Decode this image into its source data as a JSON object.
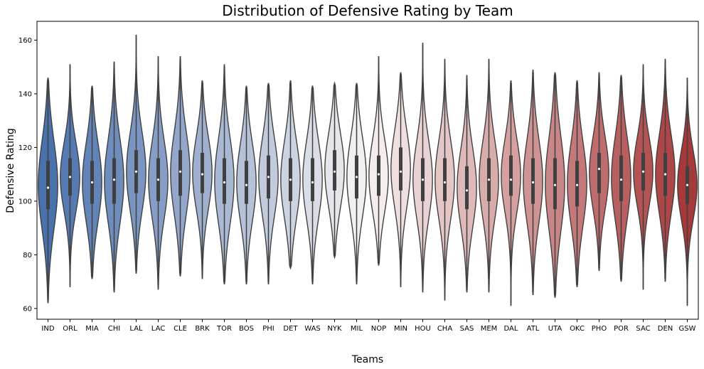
{
  "chart_data": {
    "type": "violin",
    "title": "Distribution of Defensive Rating by Team",
    "xlabel": "Teams",
    "ylabel": "Defensive Rating",
    "ylim": [
      56,
      167
    ],
    "yticks": [
      60,
      80,
      100,
      120,
      140,
      160
    ],
    "grid": false,
    "legend": "none",
    "categories": [
      "IND",
      "ORL",
      "MIA",
      "CHI",
      "LAL",
      "LAC",
      "CLE",
      "BRK",
      "TOR",
      "BOS",
      "PHI",
      "DET",
      "WAS",
      "NYK",
      "MIL",
      "NOP",
      "MIN",
      "HOU",
      "CHA",
      "SAS",
      "MEM",
      "DAL",
      "ATL",
      "UTA",
      "OKC",
      "PHO",
      "POR",
      "SAC",
      "DEN",
      "GSW"
    ],
    "series": [
      {
        "values": [
          {
            "min": 62,
            "q1": 97,
            "median": 105,
            "q3": 115,
            "max": 146
          },
          {
            "min": 68,
            "q1": 102,
            "median": 109,
            "q3": 116,
            "max": 151
          },
          {
            "min": 71,
            "q1": 99,
            "median": 107,
            "q3": 115,
            "max": 143
          },
          {
            "min": 66,
            "q1": 99,
            "median": 108,
            "q3": 116,
            "max": 152
          },
          {
            "min": 73,
            "q1": 103,
            "median": 111,
            "q3": 119,
            "max": 162
          },
          {
            "min": 67,
            "q1": 100,
            "median": 108,
            "q3": 116,
            "max": 154
          },
          {
            "min": 72,
            "q1": 102,
            "median": 111,
            "q3": 119,
            "max": 154
          },
          {
            "min": 71,
            "q1": 103,
            "median": 110,
            "q3": 118,
            "max": 145
          },
          {
            "min": 69,
            "q1": 99,
            "median": 107,
            "q3": 116,
            "max": 151
          },
          {
            "min": 69,
            "q1": 99,
            "median": 106,
            "q3": 115,
            "max": 143
          },
          {
            "min": 69,
            "q1": 101,
            "median": 109,
            "q3": 117,
            "max": 144
          },
          {
            "min": 75,
            "q1": 100,
            "median": 108,
            "q3": 116,
            "max": 145
          },
          {
            "min": 69,
            "q1": 100,
            "median": 107,
            "q3": 116,
            "max": 143
          },
          {
            "min": 79,
            "q1": 104,
            "median": 111,
            "q3": 119,
            "max": 144
          },
          {
            "min": 69,
            "q1": 101,
            "median": 109,
            "q3": 117,
            "max": 144
          },
          {
            "min": 76,
            "q1": 102,
            "median": 110,
            "q3": 117,
            "max": 154
          },
          {
            "min": 68,
            "q1": 104,
            "median": 111,
            "q3": 120,
            "max": 148
          },
          {
            "min": 66,
            "q1": 100,
            "median": 108,
            "q3": 116,
            "max": 159
          },
          {
            "min": 63,
            "q1": 100,
            "median": 107,
            "q3": 116,
            "max": 153
          },
          {
            "min": 66,
            "q1": 97,
            "median": 104,
            "q3": 113,
            "max": 147
          },
          {
            "min": 66,
            "q1": 100,
            "median": 108,
            "q3": 116,
            "max": 153
          },
          {
            "min": 61,
            "q1": 102,
            "median": 108,
            "q3": 117,
            "max": 145
          },
          {
            "min": 65,
            "q1": 99,
            "median": 107,
            "q3": 116,
            "max": 149
          },
          {
            "min": 64,
            "q1": 97,
            "median": 106,
            "q3": 116,
            "max": 148
          },
          {
            "min": 68,
            "q1": 98,
            "median": 106,
            "q3": 115,
            "max": 145
          },
          {
            "min": 74,
            "q1": 103,
            "median": 112,
            "q3": 118,
            "max": 148
          },
          {
            "min": 70,
            "q1": 100,
            "median": 108,
            "q3": 117,
            "max": 147
          },
          {
            "min": 67,
            "q1": 104,
            "median": 111,
            "q3": 118,
            "max": 151
          },
          {
            "min": 70,
            "q1": 102,
            "median": 110,
            "q3": 118,
            "max": 153
          },
          {
            "min": 61,
            "q1": 99,
            "median": 106,
            "q3": 113,
            "max": 146
          }
        ]
      }
    ],
    "colors": {
      "palette_start": "#4a72ad",
      "palette_mid": "#f7f3f2",
      "palette_end": "#a8393a",
      "outline": "#404040",
      "box": "#404040",
      "median_dot": "#ffffff"
    }
  }
}
